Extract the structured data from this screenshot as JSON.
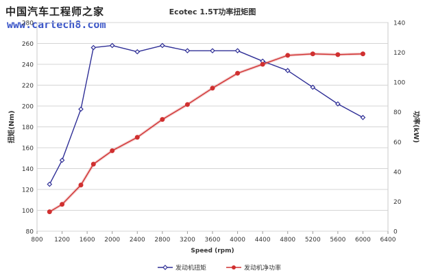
{
  "watermark": {
    "site_name": "中国汽车工程师之家",
    "url": "www.cartech8.com"
  },
  "chart_data": {
    "type": "line",
    "title": "Ecotec 1.5T功率扭矩图",
    "xlabel": "Speed (rpm)",
    "ylabel_left": "扭矩(Nm)",
    "ylabel_right": "功率(kW)",
    "xlim": [
      800,
      6400
    ],
    "ylim_left": [
      80,
      280
    ],
    "ylim_right": [
      0,
      140
    ],
    "x_ticks": [
      "800",
      "1200",
      "1600",
      "2000",
      "2400",
      "2800",
      "3200",
      "3600",
      "4000",
      "4400",
      "4800",
      "5200",
      "5600",
      "6000",
      "6400"
    ],
    "y_left_ticks": [
      "80",
      "100",
      "120",
      "140",
      "160",
      "180",
      "200",
      "220",
      "240",
      "260",
      "280"
    ],
    "y_right_ticks": [
      "0",
      "20",
      "40",
      "60",
      "80",
      "100",
      "120",
      "140"
    ],
    "grid": true,
    "legend_position": "bottom",
    "series": [
      {
        "name": "发动机扭矩",
        "axis": "left",
        "color": "#2e2e96",
        "x": [
          1000,
          1200,
          1500,
          1700,
          2000,
          2400,
          2800,
          3200,
          3600,
          4000,
          4400,
          4800,
          5200,
          5600,
          6000
        ],
        "values": [
          125,
          148,
          197,
          256,
          258,
          252,
          258,
          253,
          253,
          253,
          243,
          234,
          218,
          202,
          189
        ]
      },
      {
        "name": "发动机净功率",
        "axis": "right",
        "color": "#d03030",
        "x": [
          1000,
          1200,
          1500,
          1700,
          2000,
          2400,
          2800,
          3200,
          3600,
          4000,
          4400,
          4800,
          5200,
          5600,
          6000
        ],
        "values": [
          13,
          18,
          31,
          45,
          54,
          63,
          75,
          85,
          96,
          106,
          112,
          118,
          119,
          118.5,
          119
        ]
      }
    ]
  }
}
